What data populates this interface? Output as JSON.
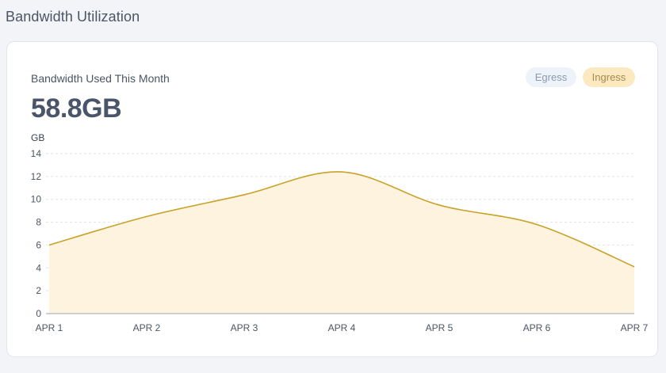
{
  "header": {
    "title": "Bandwidth Utilization"
  },
  "card": {
    "label": "Bandwidth Used This Month",
    "total": "58.8GB"
  },
  "toggles": [
    {
      "label": "Egress",
      "active": false
    },
    {
      "label": "Ingress",
      "active": true
    }
  ],
  "colors": {
    "line": "#c9a227",
    "fill": "#fef3de",
    "grid": "#e1e3e8",
    "axis": "#9ca3af"
  },
  "chart_data": {
    "type": "area",
    "ylabel": "GB",
    "ylim": [
      0,
      14
    ],
    "yticks": [
      0,
      2,
      4,
      6,
      8,
      10,
      12,
      14
    ],
    "categories": [
      "APR 1",
      "APR 2",
      "APR 3",
      "APR 4",
      "APR 5",
      "APR 6",
      "APR 7"
    ],
    "series": [
      {
        "values": [
          6.0,
          8.5,
          10.4,
          12.4,
          9.5,
          7.8,
          4.1
        ]
      }
    ],
    "grid": true
  }
}
